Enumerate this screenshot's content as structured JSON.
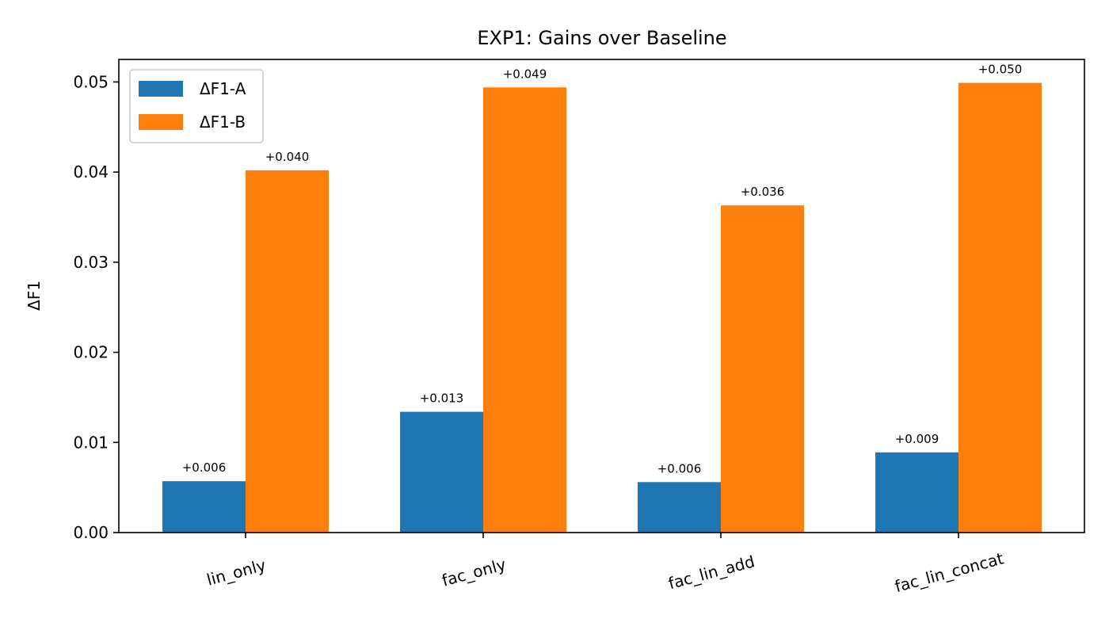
{
  "chart_data": {
    "type": "bar",
    "title": "EXP1: Gains over Baseline",
    "xlabel": "",
    "ylabel": "ΔF1",
    "categories": [
      "lin_only",
      "fac_only",
      "fac_lin_add",
      "fac_lin_concat"
    ],
    "series": [
      {
        "name": "ΔF1-A",
        "color": "#1f77b4",
        "values": [
          0.0057,
          0.0134,
          0.0056,
          0.0089
        ],
        "labels": [
          "+0.006",
          "+0.013",
          "+0.006",
          "+0.009"
        ]
      },
      {
        "name": "ΔF1-B",
        "color": "#ff7f0e",
        "values": [
          0.0402,
          0.0494,
          0.0363,
          0.0499
        ],
        "labels": [
          "+0.040",
          "+0.049",
          "+0.036",
          "+0.050"
        ]
      }
    ],
    "ylim": [
      0,
      0.0525
    ],
    "yticks": [
      "0.00",
      "0.01",
      "0.02",
      "0.03",
      "0.04",
      "0.05"
    ],
    "grid": false,
    "legend_position": "upper-left"
  }
}
